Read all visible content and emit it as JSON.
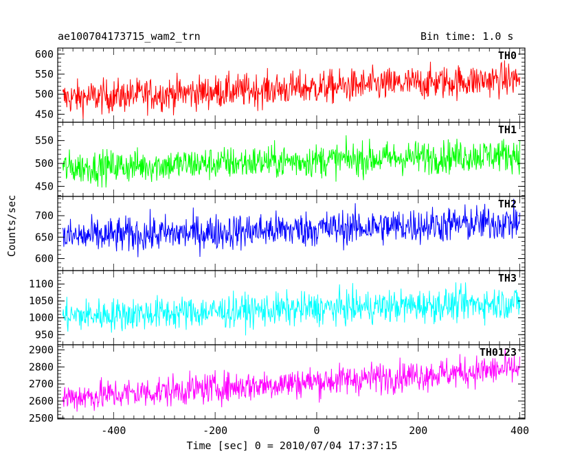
{
  "chart_data": {
    "type": "line",
    "title": "ae100704173715_wam2_trn",
    "subtitle": "Bin time: 1.0 s",
    "xlabel": "Time [sec] 0 = 2010/07/04 17:37:15",
    "ylabel": "Counts/sec",
    "xlim": [
      -510,
      410
    ],
    "xticks": [
      -400,
      -200,
      0,
      200,
      400
    ],
    "grid": false,
    "panels": [
      {
        "name": "TH0",
        "color": "#ff0000",
        "ylim": [
          430,
          615
        ],
        "yticks": [
          450,
          500,
          550,
          600
        ],
        "trend_start": 490,
        "trend_end": 538,
        "noise": 30,
        "x_range": [
          -500,
          400
        ]
      },
      {
        "name": "TH1",
        "color": "#00ff00",
        "ylim": [
          428,
          590
        ],
        "yticks": [
          450,
          500,
          550
        ],
        "trend_start": 490,
        "trend_end": 520,
        "noise": 26,
        "x_range": [
          -500,
          400
        ]
      },
      {
        "name": "TH2",
        "color": "#0000ff",
        "ylim": [
          572,
          745
        ],
        "yticks": [
          600,
          650,
          700
        ],
        "trend_start": 650,
        "trend_end": 685,
        "noise": 30,
        "x_range": [
          -500,
          400
        ]
      },
      {
        "name": "TH3",
        "color": "#00ffff",
        "ylim": [
          920,
          1140
        ],
        "yticks": [
          950,
          1000,
          1050,
          1100
        ],
        "trend_start": 1005,
        "trend_end": 1045,
        "noise": 35,
        "x_range": [
          -500,
          400
        ]
      },
      {
        "name": "TH0123",
        "color": "#ff00ff",
        "ylim": [
          2495,
          2930
        ],
        "yticks": [
          2500,
          2600,
          2700,
          2800,
          2900
        ],
        "trend_start": 2620,
        "trend_end": 2790,
        "noise": 65,
        "x_range": [
          -500,
          400
        ]
      }
    ]
  }
}
